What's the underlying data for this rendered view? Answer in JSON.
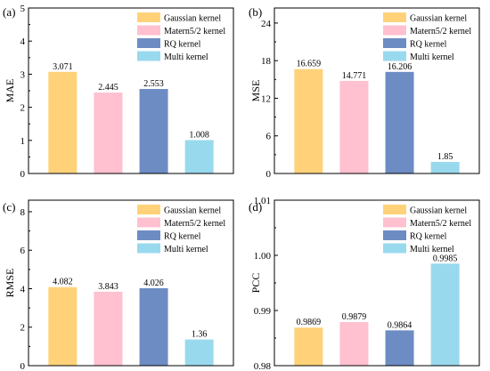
{
  "colors": {
    "gaussian": "#ffd27a",
    "matern": "#ffc0cf",
    "rq": "#6d8cc4",
    "multi": "#99d9ee",
    "axis": "#000000"
  },
  "chart_data": [
    {
      "type": "bar",
      "panel_label": "(a)",
      "ylabel": "MAE",
      "categories": [
        "Gaussian kernel",
        "Matern5/2 kernel",
        "RQ kernel",
        "Multi kernel"
      ],
      "values": [
        3.071,
        2.445,
        2.553,
        1.008
      ],
      "value_labels": [
        "3.071",
        "2.445",
        "2.553",
        "1.008"
      ],
      "ylim": [
        0,
        5
      ],
      "yticks": [
        0,
        1,
        2,
        3,
        4,
        5
      ],
      "ytick_labels": [
        "0",
        "1",
        "2",
        "3",
        "4",
        "5"
      ],
      "legend": [
        "Gaussian kernel",
        "Matern5/2 kernel",
        "RQ kernel",
        "Multi kernel"
      ],
      "legend_position": "top-right",
      "grid": false
    },
    {
      "type": "bar",
      "panel_label": "(b)",
      "ylabel": "MSE",
      "categories": [
        "Gaussian kernel",
        "Matern5/2 kernel",
        "RQ kernel",
        "Multi kernel"
      ],
      "values": [
        16.659,
        14.771,
        16.206,
        1.85
      ],
      "value_labels": [
        "16.659",
        "14.771",
        "16.206",
        "1.85"
      ],
      "ylim": [
        0,
        26.4
      ],
      "yticks": [
        0,
        6,
        12,
        18,
        24
      ],
      "ytick_labels": [
        "0",
        "6",
        "12",
        "18",
        "24"
      ],
      "legend": [
        "Gaussian kernel",
        "Matern5/2 kernel",
        "RQ kernel",
        "Multi kernel"
      ],
      "legend_position": "top-right",
      "grid": false
    },
    {
      "type": "bar",
      "panel_label": "(c)",
      "ylabel": "RMSE",
      "categories": [
        "Gaussian kernel",
        "Matern5/2 kernel",
        "RQ kernel",
        "Multi kernel"
      ],
      "values": [
        4.082,
        3.843,
        4.026,
        1.36
      ],
      "value_labels": [
        "4.082",
        "3.843",
        "4.026",
        "1.36"
      ],
      "ylim": [
        0,
        8.6
      ],
      "yticks": [
        0,
        2,
        4,
        6,
        8
      ],
      "ytick_labels": [
        "0",
        "2",
        "4",
        "6",
        "8"
      ],
      "legend": [
        "Gaussian kernel",
        "Matern5/2 kernel",
        "RQ kernel",
        "Multi kernel"
      ],
      "legend_position": "top-right",
      "grid": false
    },
    {
      "type": "bar",
      "panel_label": "(d)",
      "ylabel": "PCC",
      "categories": [
        "Gaussian kernel",
        "Matern5/2 kernel",
        "RQ kernel",
        "Multi kernel"
      ],
      "values": [
        0.9869,
        0.9879,
        0.9864,
        0.9985
      ],
      "value_labels": [
        "0.9869",
        "0.9879",
        "0.9864",
        "0.9985"
      ],
      "ylim": [
        0.98,
        1.01
      ],
      "yticks": [
        0.98,
        0.99,
        1.0,
        1.01
      ],
      "ytick_labels": [
        "0.98",
        "0.99",
        "1.00",
        "1.01"
      ],
      "legend": [
        "Gaussian kernel",
        "Matern5/2 kernel",
        "RQ kernel",
        "Multi kernel"
      ],
      "legend_position": "top-right",
      "grid": false
    }
  ]
}
